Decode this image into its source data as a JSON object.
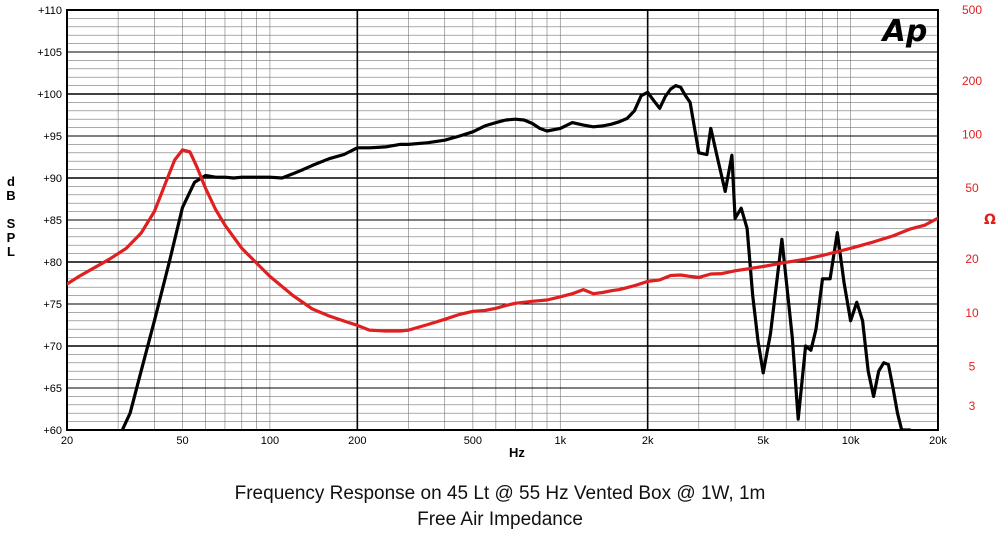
{
  "chart_data": {
    "type": "line",
    "title": "Frequency Response on 45 Lt @ 55 Hz Vented Box @ 1W, 1m",
    "subtitle": "Free Air Impedance",
    "xlabel": "Hz",
    "ylabel": [
      "d",
      "B",
      "",
      "S",
      "P",
      "L"
    ],
    "y2label": "Ω",
    "logo": "Ap",
    "x_scale": "log",
    "xlim": [
      20,
      20000
    ],
    "ylim": [
      60,
      110
    ],
    "y2_scale": "log",
    "y2lim": [
      2.2,
      500
    ],
    "grid": true,
    "x_ticks": [
      {
        "v": 20,
        "label": "20"
      },
      {
        "v": 50,
        "label": "50"
      },
      {
        "v": 100,
        "label": "100"
      },
      {
        "v": 200,
        "label": "200"
      },
      {
        "v": 500,
        "label": "500"
      },
      {
        "v": 1000,
        "label": "1k"
      },
      {
        "v": 2000,
        "label": "2k"
      },
      {
        "v": 5000,
        "label": "5k"
      },
      {
        "v": 10000,
        "label": "10k"
      },
      {
        "v": 20000,
        "label": "20k"
      }
    ],
    "y_ticks": [
      {
        "v": 60,
        "label": "+60"
      },
      {
        "v": 65,
        "label": "+65"
      },
      {
        "v": 70,
        "label": "+70"
      },
      {
        "v": 75,
        "label": "+75"
      },
      {
        "v": 80,
        "label": "+80"
      },
      {
        "v": 85,
        "label": "+85"
      },
      {
        "v": 90,
        "label": "+90"
      },
      {
        "v": 95,
        "label": "+95"
      },
      {
        "v": 100,
        "label": "+100"
      },
      {
        "v": 105,
        "label": "+105"
      },
      {
        "v": 110,
        "label": "+110"
      }
    ],
    "y2_ticks": [
      {
        "v": 3,
        "label": "3"
      },
      {
        "v": 5,
        "label": "5"
      },
      {
        "v": 10,
        "label": "10"
      },
      {
        "v": 20,
        "label": "20"
      },
      {
        "v": 50,
        "label": "50"
      },
      {
        "v": 100,
        "label": "100"
      },
      {
        "v": 200,
        "label": "200"
      },
      {
        "v": 500,
        "label": "500"
      }
    ],
    "series": [
      {
        "axis": "left",
        "color": "#000000",
        "x": [
          31,
          33,
          36,
          40,
          45,
          50,
          55,
          60,
          65,
          70,
          75,
          80,
          90,
          100,
          110,
          120,
          130,
          140,
          160,
          180,
          200,
          220,
          250,
          280,
          300,
          350,
          400,
          450,
          500,
          550,
          600,
          650,
          700,
          750,
          800,
          850,
          900,
          1000,
          1100,
          1200,
          1300,
          1400,
          1500,
          1600,
          1700,
          1800,
          1900,
          2000,
          2100,
          2200,
          2300,
          2400,
          2500,
          2600,
          2700,
          2800,
          3000,
          3200,
          3300,
          3500,
          3700,
          3900,
          4000,
          4200,
          4400,
          4600,
          4800,
          5000,
          5300,
          5800,
          6300,
          6600,
          7000,
          7300,
          7600,
          8000,
          8500,
          9000,
          9500,
          10000,
          10500,
          11000,
          11500,
          12000,
          12500,
          13000,
          13500,
          14000,
          14500,
          15000,
          16000
        ],
        "values": [
          60,
          62,
          67,
          73,
          80,
          86.5,
          89.5,
          90.3,
          90.1,
          90.1,
          90.0,
          90.1,
          90.1,
          90.1,
          90.0,
          90.5,
          91.0,
          91.5,
          92.3,
          92.8,
          93.6,
          93.6,
          93.7,
          94.0,
          94.0,
          94.2,
          94.5,
          95.0,
          95.5,
          96.2,
          96.6,
          96.9,
          97.0,
          96.9,
          96.5,
          95.9,
          95.6,
          95.9,
          96.6,
          96.3,
          96.1,
          96.2,
          96.4,
          96.7,
          97.1,
          98.0,
          99.8,
          100.2,
          99.2,
          98.3,
          99.7,
          100.6,
          101.0,
          100.8,
          99.8,
          99.0,
          93.0,
          92.8,
          95.9,
          92.0,
          88.4,
          92.7,
          85.2,
          86.4,
          84.0,
          76.0,
          70.5,
          66.8,
          71.5,
          82.7,
          71.0,
          61.3,
          70.0,
          69.5,
          72.0,
          78.0,
          78.0,
          83.5,
          77.5,
          73.0,
          75.2,
          73.0,
          67.0,
          64.0,
          67.0,
          68.0,
          67.8,
          65.0,
          62.0,
          60.0,
          60.0
        ]
      },
      {
        "axis": "right",
        "color": "#e02020",
        "x": [
          20,
          22,
          25,
          28,
          32,
          36,
          40,
          44,
          47,
          50,
          53,
          56,
          60,
          65,
          70,
          80,
          90,
          100,
          120,
          140,
          160,
          180,
          200,
          220,
          250,
          280,
          300,
          350,
          400,
          450,
          500,
          550,
          600,
          650,
          700,
          800,
          900,
          1000,
          1100,
          1200,
          1300,
          1400,
          1500,
          1600,
          1800,
          2000,
          2200,
          2400,
          2600,
          2800,
          3000,
          3300,
          3600,
          4000,
          5000,
          6000,
          7000,
          8000,
          10000,
          12000,
          14000,
          16000,
          18000,
          20000
        ],
        "values": [
          14.5,
          16,
          18,
          20,
          23,
          28,
          37,
          55,
          72,
          82,
          80,
          66,
          50,
          38,
          31,
          23,
          19,
          16,
          12.5,
          10.5,
          9.6,
          9.0,
          8.5,
          8.0,
          7.9,
          7.9,
          8.0,
          8.6,
          9.2,
          9.8,
          10.2,
          10.3,
          10.6,
          11.0,
          11.3,
          11.6,
          11.8,
          12.3,
          12.8,
          13.5,
          12.8,
          13.0,
          13.3,
          13.5,
          14.2,
          15.0,
          15.3,
          16.2,
          16.3,
          16.0,
          15.8,
          16.5,
          16.6,
          17.2,
          18.2,
          19.2,
          20.0,
          21.0,
          23.0,
          25.0,
          27.0,
          29.5,
          31.0,
          34.0
        ]
      }
    ]
  },
  "colors": {
    "response": "#000000",
    "impedance": "#e02020",
    "axis_right": "#e02020"
  }
}
